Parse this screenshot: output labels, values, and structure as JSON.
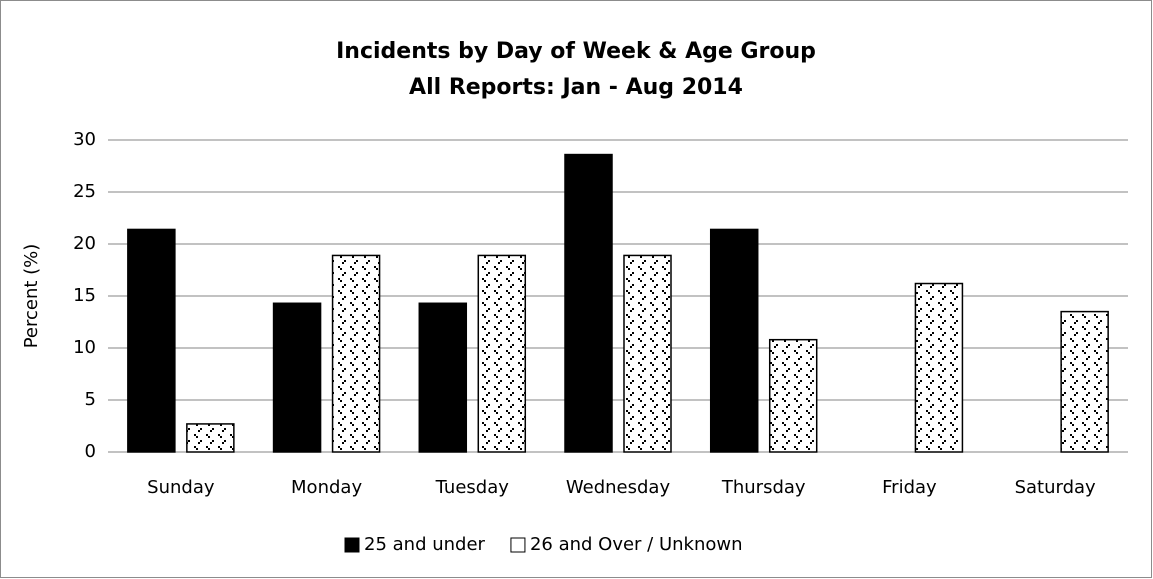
{
  "chart_data": {
    "type": "bar",
    "title": "Incidents by Day of Week & Age Group",
    "subtitle": "All Reports: Jan - Aug 2014",
    "y_label": "Percent (%)",
    "categories": [
      "Sunday",
      "Monday",
      "Tuesday",
      "Wednesday",
      "Thursday",
      "Friday",
      "Saturday"
    ],
    "series": [
      {
        "name": "25 and under",
        "color": "#000000",
        "values": [
          21.4,
          14.3,
          14.3,
          28.6,
          21.4,
          0,
          0
        ]
      },
      {
        "name": "26 and Over / Unknown",
        "color": "#ffffff",
        "values": [
          2.7,
          18.9,
          18.9,
          18.9,
          10.8,
          16.2,
          13.5
        ]
      }
    ],
    "ylim": [
      0,
      30
    ],
    "yticks": [
      0,
      5,
      10,
      15,
      20,
      25,
      30
    ],
    "grid": true,
    "legend": "bottom"
  }
}
